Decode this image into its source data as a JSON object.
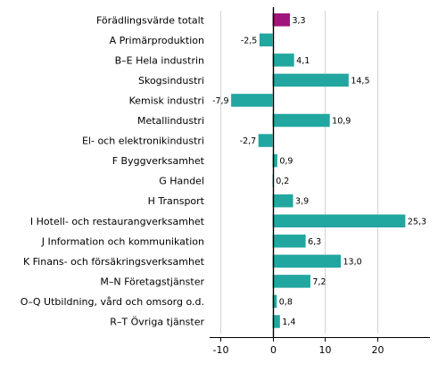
{
  "chart_data": {
    "type": "bar",
    "orientation": "horizontal",
    "categories": [
      "Förädlingsvärde totalt",
      "A Primärproduktion",
      "B–E Hela industrin",
      "Skogsindustri",
      "Kemisk industri",
      "Metallindustri",
      "El- och elektronikindustri",
      "F Byggverksamhet",
      "G Handel",
      "H Transport",
      "I Hotell- och restaurangverksamhet",
      "J Information och kommunikation",
      "K Finans- och försäkringsverksamhet",
      "M–N Företagstjänster",
      "O–Q Utbildning, vård och omsorg o.d.",
      "R–T Övriga tjänster"
    ],
    "values": [
      3.3,
      -2.5,
      4.1,
      14.5,
      -7.9,
      10.9,
      -2.7,
      0.9,
      0.2,
      3.9,
      25.3,
      6.3,
      13.0,
      7.2,
      0.8,
      1.4
    ],
    "value_labels": [
      "3,3",
      "-2,5",
      "4,1",
      "14,5",
      "-7,9",
      "10,9",
      "-2,7",
      "0,9",
      "0,2",
      "3,9",
      "25,3",
      "6,3",
      "13,0",
      "7,2",
      "0,8",
      "1,4"
    ],
    "highlight_index": 0,
    "colors": {
      "highlight": "#a0157b",
      "default": "#22a6a0",
      "grid": "#d4d4d4",
      "axis": "#000000"
    },
    "xlim": [
      -12,
      30
    ],
    "xticks": [
      -10,
      0,
      10,
      20
    ],
    "xtick_labels": [
      "-10",
      "0",
      "10",
      "20"
    ],
    "grid": true
  }
}
